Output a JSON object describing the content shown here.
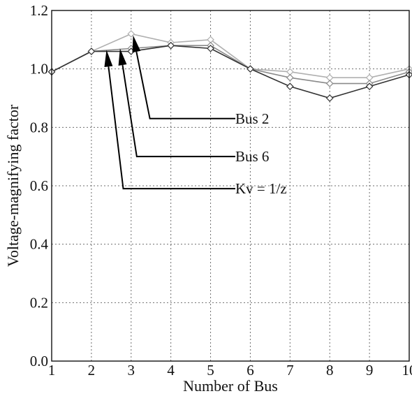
{
  "chart_data": {
    "type": "line",
    "title": "",
    "xlabel": "Number of Bus",
    "ylabel": "Voltage-magnifying factor",
    "x": [
      1,
      2,
      3,
      4,
      5,
      6,
      7,
      8,
      9,
      10
    ],
    "xlim": [
      1,
      10
    ],
    "ylim": [
      0.0,
      1.2
    ],
    "x_ticks": [
      "1",
      "2",
      "3",
      "4",
      "5",
      "6",
      "7",
      "8",
      "9",
      "10"
    ],
    "y_ticks": [
      "0.0",
      "0.2",
      "0.4",
      "0.6",
      "0.8",
      "1.0",
      "1.2"
    ],
    "grid": true,
    "series": [
      {
        "name": "Bus 2",
        "color": "#b0b0b0",
        "values": [
          0.99,
          1.06,
          1.12,
          1.09,
          1.1,
          1.0,
          0.99,
          0.97,
          0.97,
          1.0
        ]
      },
      {
        "name": "Bus 6",
        "color": "#8a8a8a",
        "values": [
          0.99,
          1.06,
          1.07,
          1.08,
          1.08,
          1.0,
          0.97,
          0.95,
          0.95,
          0.99
        ]
      },
      {
        "name": "Kv = 1/z",
        "color": "#333333",
        "values": [
          0.99,
          1.06,
          1.06,
          1.08,
          1.07,
          1.0,
          0.94,
          0.9,
          0.94,
          0.98
        ]
      }
    ],
    "annotations": [
      {
        "text": "Bus 2",
        "series": 0,
        "target_x": 3.05,
        "target_y": 1.115,
        "label_y": 0.83
      },
      {
        "text": "Bus 6",
        "series": 1,
        "target_x": 2.72,
        "target_y": 1.07,
        "label_y": 0.7
      },
      {
        "text": "Kv = 1/z",
        "series": 2,
        "target_x": 2.38,
        "target_y": 1.065,
        "label_y": 0.59
      }
    ]
  }
}
